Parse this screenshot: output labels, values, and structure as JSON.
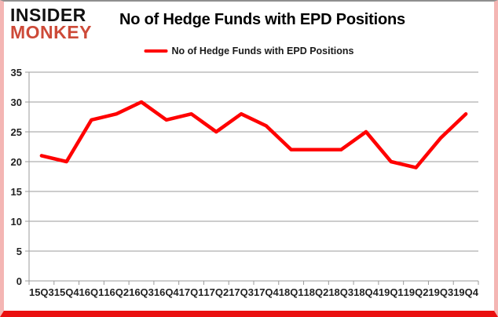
{
  "logo": {
    "line1": "INSIDER",
    "line2": "MONKEY"
  },
  "title": "No of Hedge Funds with EPD Positions",
  "legend": {
    "label": "No of Hedge Funds with EPD Positions"
  },
  "colors": {
    "series_line": "#ff0000",
    "logo_monkey": "#cd4a38",
    "gridline": "#9b9b9b",
    "frame_side": "#f4b6b4",
    "frame_bottom": "#ea0f0f"
  },
  "chart_data": {
    "type": "line",
    "title": "No of Hedge Funds with EPD Positions",
    "categories": [
      "15Q3",
      "15Q4",
      "16Q1",
      "16Q2",
      "16Q3",
      "16Q4",
      "17Q1",
      "17Q2",
      "17Q3",
      "17Q4",
      "18Q1",
      "18Q2",
      "18Q3",
      "18Q4",
      "19Q1",
      "19Q2",
      "19Q3",
      "19Q4"
    ],
    "series": [
      {
        "name": "No of Hedge Funds with EPD Positions",
        "color": "#ff0000",
        "values": [
          21,
          20,
          27,
          28,
          30,
          27,
          28,
          25,
          28,
          26,
          22,
          22,
          22,
          25,
          20,
          19,
          24,
          28
        ]
      }
    ],
    "xlabel": "",
    "ylabel": "",
    "ylim": [
      0,
      35
    ],
    "ytick_step": 5,
    "y_ticks": [
      0,
      5,
      10,
      15,
      20,
      25,
      30,
      35
    ],
    "grid": true,
    "legend_position": "top-center"
  }
}
